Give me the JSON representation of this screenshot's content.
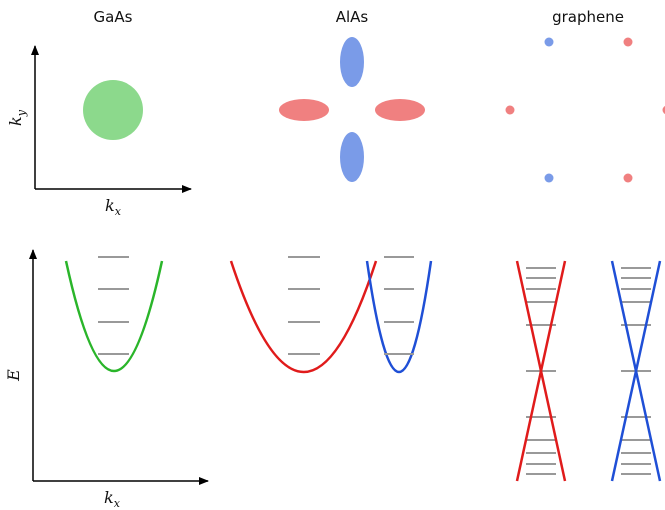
{
  "titles": {
    "gaas": "GaAs",
    "alas": "AlAs",
    "graphene": "graphene"
  },
  "top_axes": {
    "y_base": "k",
    "y_sub": "y",
    "x_base": "k",
    "x_sub": "x"
  },
  "bottom_axes": {
    "y": "E",
    "x_base": "k",
    "x_sub": "x"
  },
  "colors": {
    "green": "#2ab52a",
    "green_fill": "#8cd98c",
    "red": "#e01b1b",
    "red_fill": "#f08080",
    "blue": "#1f4fd6",
    "blue_fill": "#7a9be8",
    "level_gray": "#999999",
    "axis": "#000000"
  }
}
